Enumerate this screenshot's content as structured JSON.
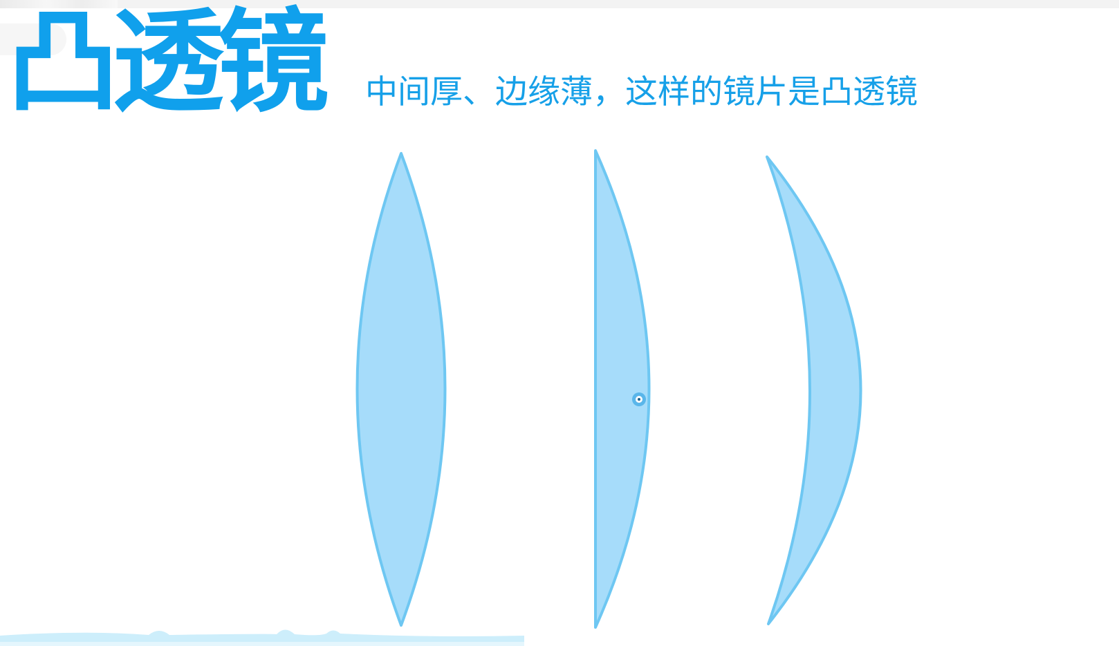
{
  "title": "凸透镜",
  "subtitle": "中间厚、边缘薄，这样的镜片是凸透镜",
  "colors": {
    "title": "#10a0ec",
    "subtitle": "#16a0e8",
    "lens_fill": "#a6dcfa",
    "lens_stroke": "#6ec7f2"
  },
  "lenses": [
    "biconvex",
    "plano-convex",
    "convex-meniscus"
  ]
}
